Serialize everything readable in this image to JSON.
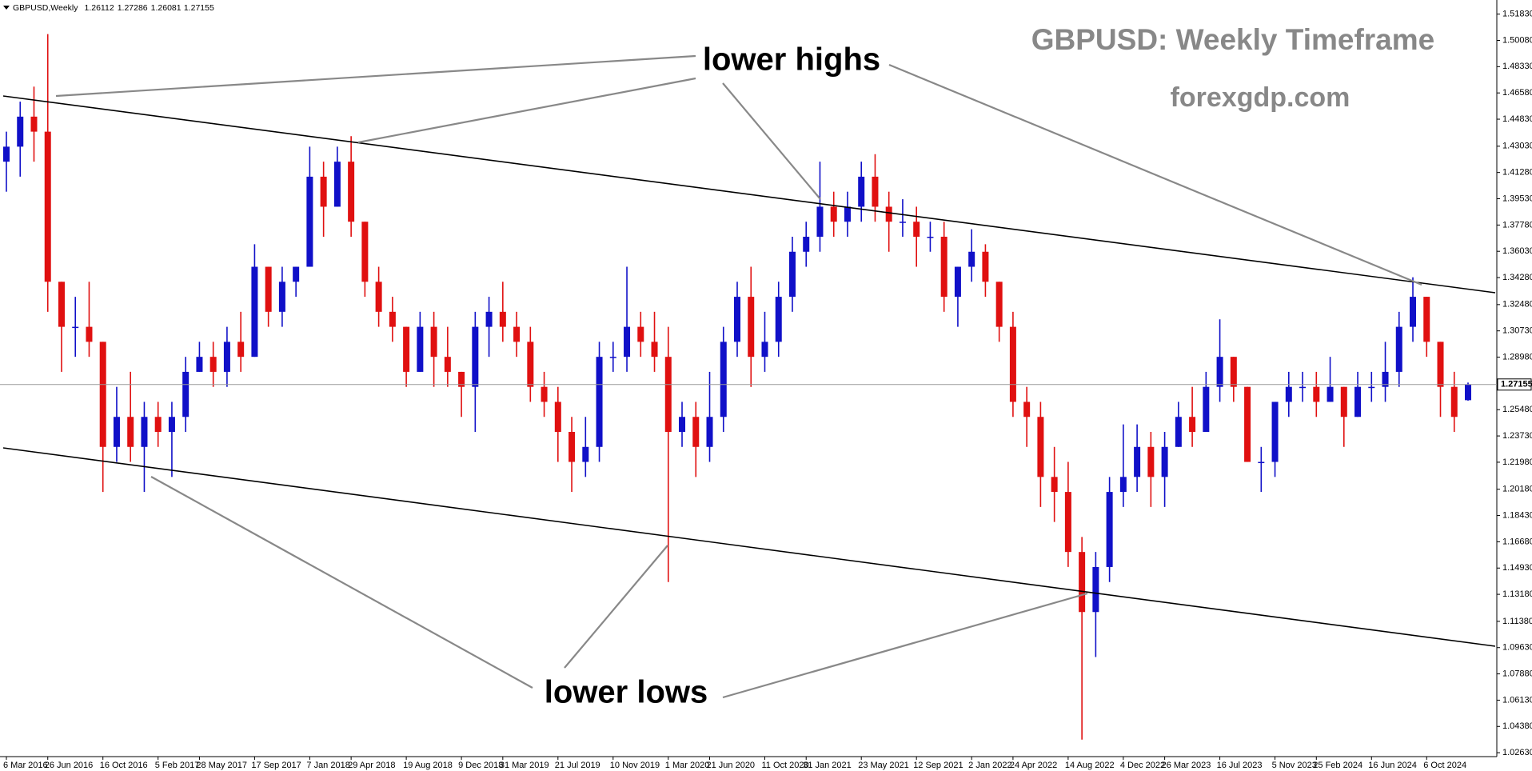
{
  "chart_data": {
    "type": "candlestick",
    "title": "GBPUSD: Weekly Timeframe",
    "subtitle": "forexgdp.com",
    "symbol": "GBPUSD,Weekly",
    "annotations": [
      "lower highs",
      "lower lows"
    ],
    "up_color": "#1010c8",
    "down_color": "#e01010",
    "grid": false,
    "categories": [
      "6 Mar 2016",
      null,
      null,
      "26 Jun 2016",
      null,
      null,
      null,
      "16 Oct 2016",
      null,
      null,
      null,
      "5 Feb 2017",
      null,
      null,
      "28 May 2017",
      null,
      null,
      null,
      "17 Sep 2017",
      null,
      null,
      null,
      "7 Jan 2018",
      null,
      null,
      "29 Apr 2018",
      null,
      null,
      null,
      "19 Aug 2018",
      null,
      null,
      null,
      "9 Dec 2018",
      null,
      null,
      "31 Mar 2019",
      null,
      null,
      null,
      "21 Jul 2019",
      null,
      null,
      null,
      "10 Nov 2019",
      null,
      null,
      null,
      "1 Mar 2020",
      null,
      null,
      "21 Jun 2020",
      null,
      null,
      null,
      "11 Oct 2020",
      null,
      null,
      "31 Jan 2021",
      null,
      null,
      null,
      "23 May 2021",
      null,
      null,
      null,
      "12 Sep 2021",
      null,
      null,
      null,
      "2 Jan 2022",
      null,
      null,
      "24 Apr 2022",
      null,
      null,
      null,
      "14 Aug 2022",
      null,
      null,
      null,
      "4 Dec 2022",
      null,
      null,
      "26 Mar 2023",
      null,
      null,
      null,
      "16 Jul 2023",
      null,
      null,
      null,
      "5 Nov 2023",
      null,
      null,
      "25 Feb 2024",
      null,
      null,
      null,
      "16 Jun 2024",
      null,
      null,
      null,
      "6 Oct 2024",
      null,
      null,
      null
    ],
    "open": [
      1.42,
      1.43,
      1.45,
      1.44,
      1.34,
      1.31,
      1.31,
      1.3,
      1.23,
      1.25,
      1.23,
      1.25,
      1.24,
      1.25,
      1.28,
      1.29,
      1.28,
      1.3,
      1.29,
      1.35,
      1.32,
      1.34,
      1.35,
      1.41,
      1.39,
      1.42,
      1.38,
      1.34,
      1.32,
      1.31,
      1.28,
      1.31,
      1.29,
      1.28,
      1.27,
      1.31,
      1.32,
      1.31,
      1.3,
      1.27,
      1.26,
      1.24,
      1.22,
      1.23,
      1.29,
      1.29,
      1.31,
      1.3,
      1.29,
      1.24,
      1.25,
      1.23,
      1.25,
      1.3,
      1.33,
      1.29,
      1.3,
      1.33,
      1.36,
      1.37,
      1.39,
      1.38,
      1.39,
      1.41,
      1.39,
      1.38,
      1.38,
      1.37,
      1.37,
      1.33,
      1.35,
      1.36,
      1.34,
      1.31,
      1.26,
      1.25,
      1.21,
      1.2,
      1.16,
      1.12,
      1.15,
      1.2,
      1.21,
      1.23,
      1.21,
      1.23,
      1.25,
      1.24,
      1.27,
      1.29,
      1.27,
      1.22,
      1.22,
      1.26,
      1.27,
      1.27,
      1.26,
      1.27,
      1.25,
      1.27,
      1.27,
      1.28,
      1.31,
      1.33,
      1.3,
      1.27,
      1.26112
    ],
    "high": [
      1.44,
      1.46,
      1.47,
      1.505,
      1.34,
      1.33,
      1.34,
      1.3,
      1.27,
      1.28,
      1.26,
      1.26,
      1.26,
      1.29,
      1.3,
      1.3,
      1.31,
      1.32,
      1.365,
      1.35,
      1.35,
      1.35,
      1.43,
      1.42,
      1.43,
      1.437,
      1.38,
      1.35,
      1.33,
      1.31,
      1.32,
      1.32,
      1.31,
      1.28,
      1.32,
      1.33,
      1.34,
      1.32,
      1.31,
      1.28,
      1.27,
      1.25,
      1.25,
      1.3,
      1.3,
      1.35,
      1.32,
      1.32,
      1.31,
      1.26,
      1.26,
      1.28,
      1.31,
      1.34,
      1.35,
      1.32,
      1.34,
      1.37,
      1.38,
      1.42,
      1.4,
      1.4,
      1.42,
      1.425,
      1.4,
      1.395,
      1.39,
      1.38,
      1.38,
      1.35,
      1.375,
      1.365,
      1.34,
      1.32,
      1.27,
      1.26,
      1.23,
      1.22,
      1.17,
      1.16,
      1.21,
      1.245,
      1.245,
      1.24,
      1.24,
      1.26,
      1.27,
      1.28,
      1.315,
      1.29,
      1.27,
      1.23,
      1.26,
      1.28,
      1.28,
      1.28,
      1.29,
      1.27,
      1.28,
      1.28,
      1.3,
      1.32,
      1.343,
      1.33,
      1.3,
      1.28,
      1.27286
    ],
    "low": [
      1.4,
      1.41,
      1.42,
      1.32,
      1.28,
      1.29,
      1.29,
      1.2,
      1.22,
      1.22,
      1.2,
      1.23,
      1.21,
      1.24,
      1.28,
      1.27,
      1.27,
      1.28,
      1.29,
      1.31,
      1.31,
      1.33,
      1.35,
      1.37,
      1.39,
      1.37,
      1.33,
      1.31,
      1.3,
      1.27,
      1.28,
      1.27,
      1.27,
      1.25,
      1.24,
      1.29,
      1.3,
      1.29,
      1.26,
      1.25,
      1.22,
      1.2,
      1.21,
      1.22,
      1.28,
      1.28,
      1.29,
      1.28,
      1.14,
      1.23,
      1.21,
      1.22,
      1.24,
      1.29,
      1.27,
      1.28,
      1.29,
      1.32,
      1.35,
      1.36,
      1.37,
      1.37,
      1.38,
      1.38,
      1.36,
      1.37,
      1.35,
      1.36,
      1.32,
      1.31,
      1.34,
      1.33,
      1.3,
      1.25,
      1.23,
      1.19,
      1.18,
      1.15,
      1.035,
      1.09,
      1.14,
      1.19,
      1.2,
      1.19,
      1.19,
      1.23,
      1.23,
      1.24,
      1.26,
      1.26,
      1.22,
      1.2,
      1.21,
      1.25,
      1.26,
      1.25,
      1.26,
      1.23,
      1.25,
      1.26,
      1.26,
      1.27,
      1.3,
      1.29,
      1.25,
      1.24,
      1.26081
    ],
    "close": [
      1.43,
      1.45,
      1.44,
      1.34,
      1.31,
      1.31,
      1.3,
      1.23,
      1.25,
      1.23,
      1.25,
      1.24,
      1.25,
      1.28,
      1.29,
      1.28,
      1.3,
      1.29,
      1.35,
      1.32,
      1.34,
      1.35,
      1.41,
      1.39,
      1.42,
      1.38,
      1.34,
      1.32,
      1.31,
      1.28,
      1.31,
      1.29,
      1.28,
      1.27,
      1.31,
      1.32,
      1.31,
      1.3,
      1.27,
      1.26,
      1.24,
      1.22,
      1.23,
      1.29,
      1.29,
      1.31,
      1.3,
      1.29,
      1.24,
      1.25,
      1.23,
      1.25,
      1.3,
      1.33,
      1.29,
      1.3,
      1.33,
      1.36,
      1.37,
      1.39,
      1.38,
      1.39,
      1.41,
      1.39,
      1.38,
      1.38,
      1.37,
      1.37,
      1.33,
      1.35,
      1.36,
      1.34,
      1.31,
      1.26,
      1.25,
      1.21,
      1.2,
      1.16,
      1.12,
      1.15,
      1.2,
      1.21,
      1.23,
      1.21,
      1.23,
      1.25,
      1.24,
      1.27,
      1.29,
      1.27,
      1.22,
      1.22,
      1.26,
      1.27,
      1.27,
      1.26,
      1.27,
      1.25,
      1.27,
      1.27,
      1.28,
      1.31,
      1.33,
      1.3,
      1.27,
      1.25,
      1.27155
    ],
    "ylim": [
      1.0237,
      1.5261
    ],
    "yticks": [
      {
        "value": 1.5183,
        "label": "1.51830"
      },
      {
        "value": 1.5008,
        "label": "1.50080"
      },
      {
        "value": 1.4833,
        "label": "1.48330"
      },
      {
        "value": 1.4658,
        "label": "1.46580"
      },
      {
        "value": 1.4483,
        "label": "1.44830"
      },
      {
        "value": 1.4303,
        "label": "1.43030"
      },
      {
        "value": 1.4128,
        "label": "1.41280"
      },
      {
        "value": 1.3953,
        "label": "1.39530"
      },
      {
        "value": 1.3778,
        "label": "1.37780"
      },
      {
        "value": 1.3603,
        "label": "1.36030"
      },
      {
        "value": 1.3428,
        "label": "1.34280"
      },
      {
        "value": 1.3248,
        "label": "1.32480"
      },
      {
        "value": 1.3073,
        "label": "1.30730"
      },
      {
        "value": 1.2898,
        "label": "1.28980"
      },
      {
        "value": 1.2548,
        "label": "1.25480"
      },
      {
        "value": 1.2373,
        "label": "1.23730"
      },
      {
        "value": 1.2198,
        "label": "1.21980"
      },
      {
        "value": 1.2018,
        "label": "1.20180"
      },
      {
        "value": 1.1843,
        "label": "1.18430"
      },
      {
        "value": 1.1668,
        "label": "1.16680"
      },
      {
        "value": 1.1493,
        "label": "1.14930"
      },
      {
        "value": 1.1318,
        "label": "1.13180"
      },
      {
        "value": 1.1138,
        "label": "1.11380"
      },
      {
        "value": 1.0963,
        "label": "1.09630"
      },
      {
        "value": 1.0788,
        "label": "1.07880"
      },
      {
        "value": 1.0613,
        "label": "1.06130"
      },
      {
        "value": 1.0438,
        "label": "1.04380"
      },
      {
        "value": 1.0263,
        "label": "1.02630"
      }
    ]
  }
}
